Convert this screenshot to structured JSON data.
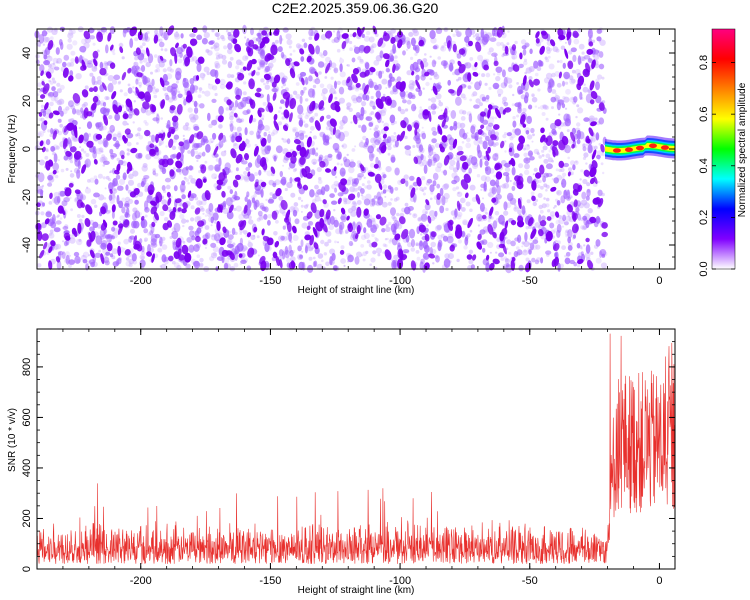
{
  "title": "C2E2.2025.359.06.36.G20",
  "chart_data": [
    {
      "type": "heatmap",
      "xlabel": "Height of straight line (km)",
      "ylabel": "Frequency (Hz)",
      "xlim": [
        -240,
        6
      ],
      "ylim": [
        -50,
        50
      ],
      "x_ticks": [
        -200,
        -150,
        -100,
        -50,
        0
      ],
      "y_ticks": [
        -40,
        -20,
        0,
        20,
        40
      ],
      "data_extent_x": [
        -240,
        -21
      ],
      "signal": {
        "x_range": [
          -21,
          6
        ],
        "frequency_hz": 0,
        "description_values": {
          "peak_amplitude": 0.9
        }
      },
      "colorbar": {
        "label": "Normalized spectral amplitude",
        "ticks": [
          0.0,
          0.2,
          0.4,
          0.6,
          0.8
        ],
        "range": [
          0,
          0.93
        ],
        "colormap": [
          "#ffffff",
          "#8000ff",
          "#0000ff",
          "#00ffff",
          "#00ff00",
          "#ffff00",
          "#ff8000",
          "#ff0000",
          "#ff0080"
        ]
      },
      "grid": false
    },
    {
      "type": "line",
      "xlabel": "Height of straight line (km)",
      "ylabel": "SNR (10 * v/v)",
      "xlim": [
        -240,
        6
      ],
      "ylim": [
        0,
        950
      ],
      "x_ticks": [
        -200,
        -150,
        -100,
        -50,
        0
      ],
      "y_ticks": [
        0,
        200,
        400,
        600,
        800
      ],
      "color": "#e8302d",
      "baseline_segment": {
        "x_range": [
          -240,
          -20
        ],
        "typical_min": 20,
        "typical_max": 200,
        "spikes_max": 340
      },
      "signal_segment": {
        "x_range": [
          -20,
          6
        ],
        "typical_min": 300,
        "typical_max": 800,
        "peak": 940
      },
      "grid": false
    }
  ]
}
